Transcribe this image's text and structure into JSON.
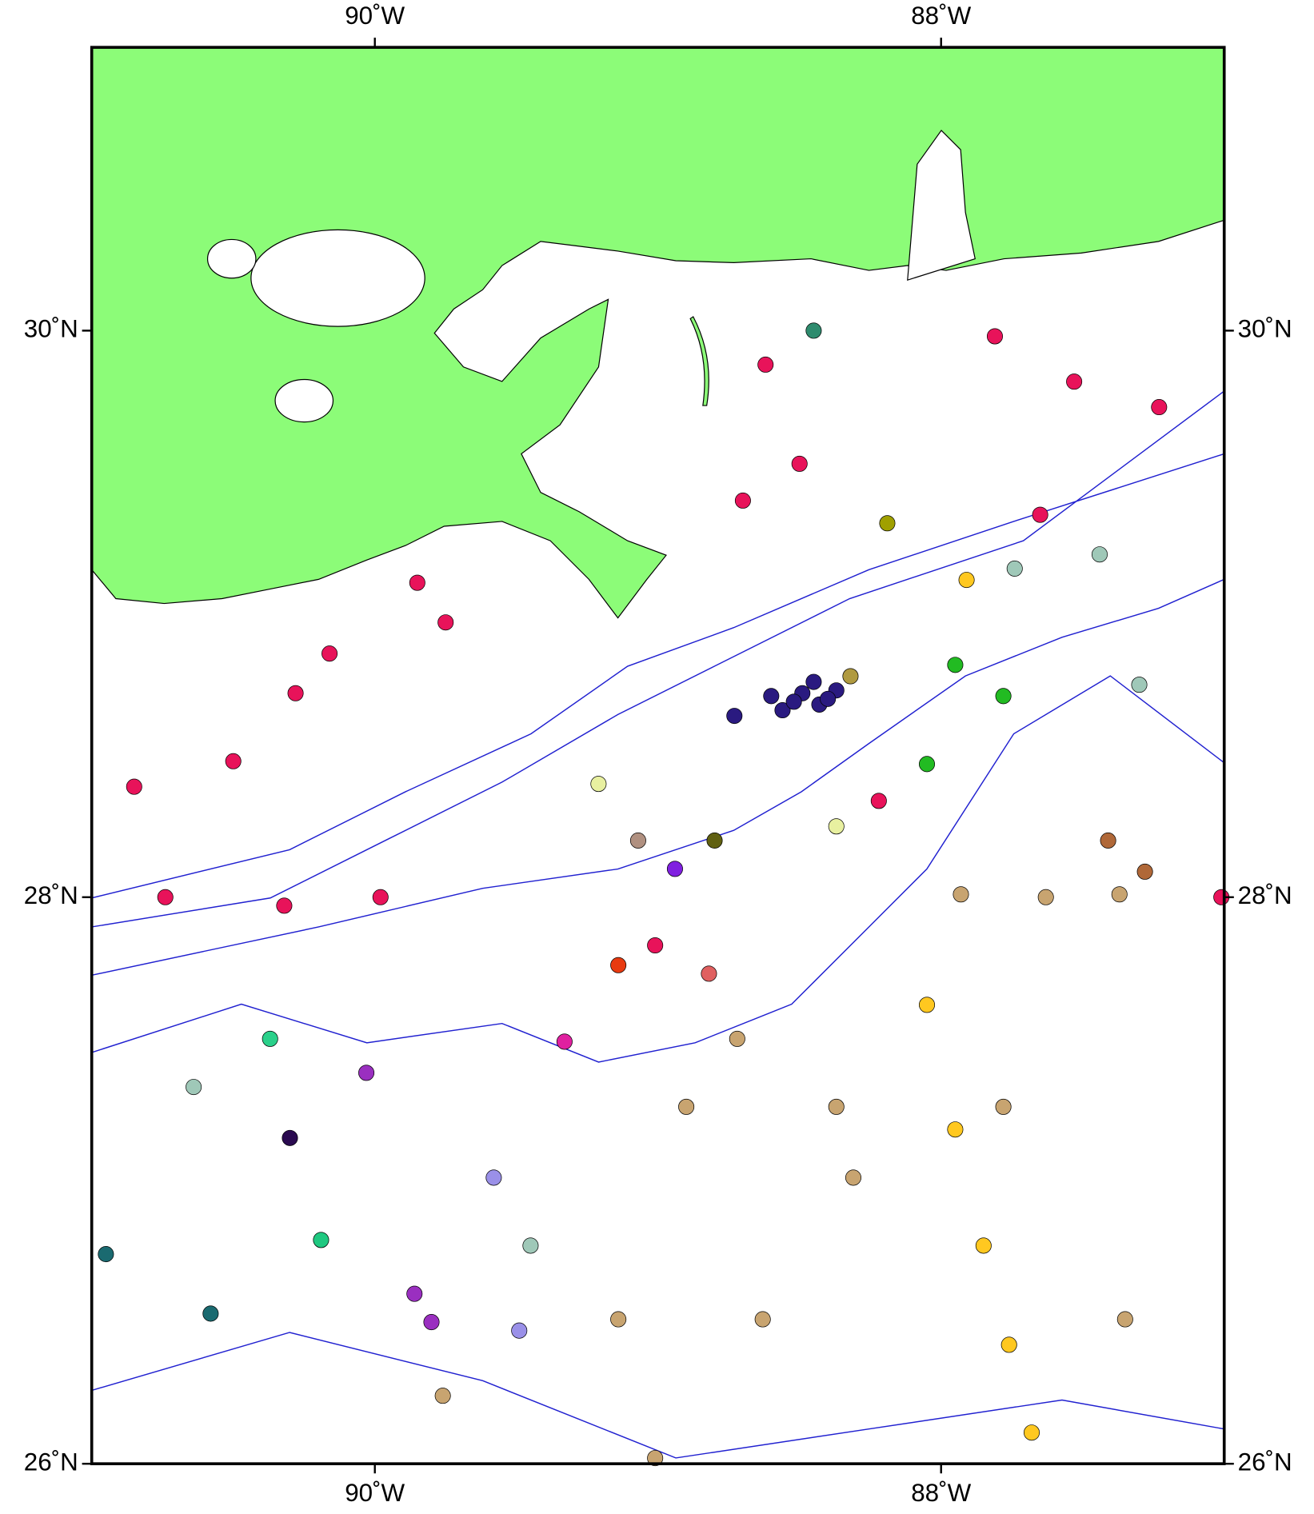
{
  "chart_data": {
    "type": "scatter",
    "xlim": [
      -91,
      -87
    ],
    "ylim": [
      26,
      31
    ],
    "xticks": [
      {
        "value": -90,
        "label": "90˚W"
      },
      {
        "value": -88,
        "label": "88˚W"
      }
    ],
    "yticks": [
      {
        "value": 26,
        "label": "26˚N"
      },
      {
        "value": 28,
        "label": "28˚N"
      },
      {
        "value": 30,
        "label": "30˚N"
      }
    ],
    "x": [
      -87.81,
      -88.45,
      -88.62,
      -87.53,
      -87.23,
      -88.5,
      -88.7,
      -87.65,
      -88.19,
      -89.85,
      -89.75,
      -90.16,
      -90.28,
      -90.85,
      -90.5,
      -90.74,
      -90.32,
      -89.98,
      -88.49,
      -88.43,
      -88.37,
      -88.4,
      -88.56,
      -88.73,
      -88.32,
      -87.78,
      -87.95,
      -88.05,
      -87.91,
      -87.74,
      -87.44,
      -87.3,
      -87.93,
      -87.63,
      -87.37,
      -88.72,
      -88.37,
      -87.78,
      -88.9,
      -88.31,
      -89.14,
      -88.63,
      -87.35,
      -87.95,
      -87.85,
      -87.76,
      -87.68,
      -88.05,
      -90.37,
      -90.3,
      -90.19,
      -90.03,
      -89.86,
      -89.8,
      -89.58,
      -89.49,
      -89.45,
      -90.64,
      -90.58,
      -90.95,
      -89.33,
      -89.14,
      -88.94,
      -89.21,
      -89.07,
      -88.8,
      -89.01,
      -88.82,
      -89.76,
      -89.01,
      -88.22,
      -88.37,
      -87.01,
      -87.28,
      -87.41,
      -88.45,
      -88.52,
      -88.6
    ],
    "values": [
      29.98,
      30.0,
      29.88,
      29.82,
      29.73,
      29.53,
      29.4,
      29.35,
      29.32,
      29.11,
      28.97,
      28.86,
      28.72,
      28.39,
      28.48,
      28.0,
      27.97,
      28.0,
      28.72,
      28.68,
      28.73,
      28.7,
      28.66,
      28.64,
      28.78,
      28.71,
      28.82,
      28.47,
      29.12,
      29.16,
      29.21,
      28.75,
      28.01,
      28.0,
      28.01,
      27.5,
      27.26,
      27.26,
      27.26,
      27.01,
      26.51,
      26.51,
      26.51,
      27.18,
      26.77,
      26.42,
      26.11,
      27.62,
      27.5,
      27.15,
      26.79,
      27.38,
      26.6,
      26.5,
      27.01,
      26.47,
      26.77,
      27.33,
      26.53,
      26.74,
      27.49,
      27.76,
      28.1,
      28.4,
      28.2,
      28.2,
      27.83,
      27.73,
      26.24,
      26.02,
      28.34,
      28.25,
      28.0,
      28.09,
      28.2,
      28.76,
      28.69,
      28.71
    ],
    "colors": [
      "#e8135a",
      "#2e8b6e",
      "#e8135a",
      "#e8135a",
      "#e8135a",
      "#e8135a",
      "#e8135a",
      "#e8135a",
      "#a0a000",
      "#e8135a",
      "#e8135a",
      "#e8135a",
      "#e8135a",
      "#e8135a",
      "#e8135a",
      "#e8135a",
      "#e8135a",
      "#e8135a",
      "#2a1a80",
      "#2a1a80",
      "#2a1a80",
      "#2a1a80",
      "#2a1a80",
      "#2a1a80",
      "#b09a40",
      "#22bb22",
      "#22bb22",
      "#22bb22",
      "#ffc820",
      "#9fc8b8",
      "#9fc8b8",
      "#9fc8b8",
      "#c8a470",
      "#c8a470",
      "#c8a470",
      "#c8a470",
      "#c8a470",
      "#c8a470",
      "#c8a470",
      "#c8a470",
      "#c8a470",
      "#c8a470",
      "#c8a470",
      "#ffc820",
      "#ffc820",
      "#ffc820",
      "#ffc820",
      "#ffc820",
      "#2ad08a",
      "#2a0a50",
      "#1fc880",
      "#9a2fc0",
      "#9a2fc0",
      "#9a2fc0",
      "#9a90e8",
      "#9a90e8",
      "#9fc8b8",
      "#9fc8b8",
      "#1a6a70",
      "#1a6a70",
      "#e020a0",
      "#e83a10",
      "#8020e0",
      "#e8f0a0",
      "#b09080",
      "#606010",
      "#e8135a",
      "#e06060",
      "#c8a470",
      "#c8a470",
      "#e8135a",
      "#e8f0a0",
      "#e8135a",
      "#b06838",
      "#b06838",
      "#2a1a80",
      "#2a1a80",
      "#2a1a80"
    ]
  }
}
